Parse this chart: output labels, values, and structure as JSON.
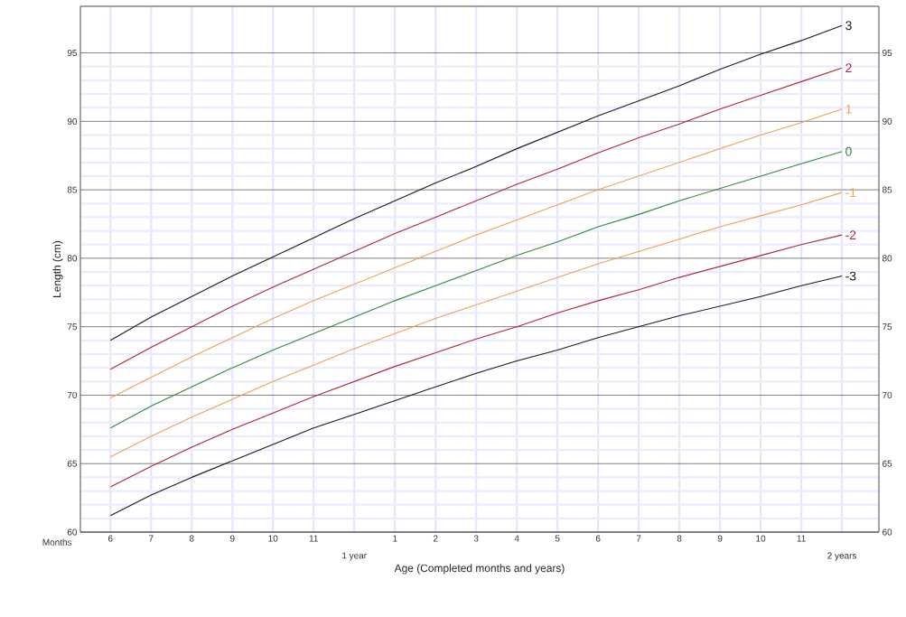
{
  "chart_data": {
    "type": "line",
    "xlabel": "Age (Completed months and years)",
    "ylabel": "Length (cm)",
    "annotations": [
      "Months",
      "1 year",
      "2 years"
    ],
    "categories": [
      "6",
      "7",
      "8",
      "9",
      "10",
      "11",
      null,
      "1",
      "2",
      "3",
      "4",
      "5",
      "6",
      "7",
      "8",
      "9",
      "10",
      "11",
      null
    ],
    "ylim": [
      60,
      98.4
    ],
    "y2lim": [
      60,
      98.4
    ],
    "yticks": [
      60,
      65,
      70,
      75,
      80,
      85,
      90,
      95
    ],
    "y2ticks": [
      60,
      65,
      70,
      75,
      80,
      85,
      90,
      95
    ],
    "grid": true,
    "legend": false,
    "marker": "none",
    "line_style": "solid",
    "series": [
      {
        "name": "3",
        "color": "#1a1a1a",
        "values": [
          74.0,
          75.7,
          77.2,
          78.7,
          80.1,
          81.5,
          82.9,
          84.2,
          85.5,
          86.7,
          88.0,
          89.2,
          90.4,
          91.5,
          92.6,
          93.8,
          94.9,
          95.9,
          97.0
        ]
      },
      {
        "name": "2",
        "color": "#b0243c",
        "values": [
          71.9,
          73.5,
          75.0,
          76.5,
          77.9,
          79.2,
          80.5,
          81.8,
          83.0,
          84.2,
          85.4,
          86.5,
          87.7,
          88.8,
          89.8,
          90.9,
          91.9,
          92.9,
          93.9
        ]
      },
      {
        "name": "1",
        "color": "#f0a050",
        "values": [
          69.8,
          71.3,
          72.8,
          74.2,
          75.6,
          76.9,
          78.1,
          79.3,
          80.5,
          81.7,
          82.8,
          83.9,
          85.0,
          86.0,
          87.0,
          88.0,
          89.0,
          89.9,
          90.9
        ]
      },
      {
        "name": "0",
        "color": "#2e8b3a",
        "values": [
          67.6,
          69.2,
          70.6,
          72.0,
          73.3,
          74.5,
          75.7,
          76.9,
          78.0,
          79.1,
          80.2,
          81.2,
          82.3,
          83.2,
          84.2,
          85.1,
          86.0,
          86.9,
          87.8
        ]
      },
      {
        "name": "-1",
        "color": "#f0a050",
        "values": [
          65.5,
          67.0,
          68.4,
          69.7,
          71.0,
          72.2,
          73.4,
          74.5,
          75.6,
          76.6,
          77.6,
          78.6,
          79.6,
          80.5,
          81.4,
          82.3,
          83.1,
          83.9,
          84.8
        ]
      },
      {
        "name": "-2",
        "color": "#b0243c",
        "values": [
          63.3,
          64.8,
          66.2,
          67.5,
          68.7,
          69.9,
          71.0,
          72.1,
          73.1,
          74.1,
          75.0,
          76.0,
          76.9,
          77.7,
          78.6,
          79.4,
          80.2,
          81.0,
          81.7
        ]
      },
      {
        "name": "-3",
        "color": "#1a1a1a",
        "values": [
          61.2,
          62.7,
          64.0,
          65.2,
          66.4,
          67.6,
          68.6,
          69.6,
          70.6,
          71.6,
          72.5,
          73.3,
          74.2,
          75.0,
          75.8,
          76.5,
          77.2,
          78.0,
          78.7
        ]
      }
    ]
  }
}
